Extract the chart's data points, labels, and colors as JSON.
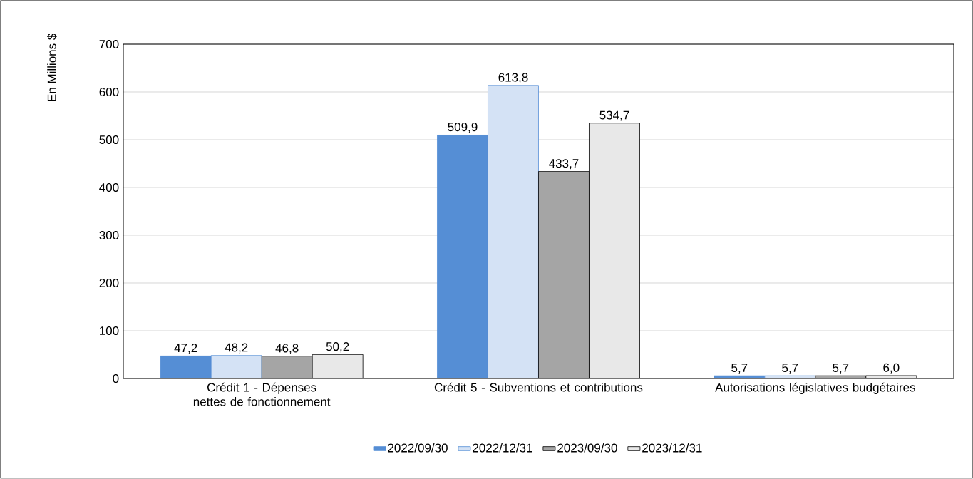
{
  "chart_data": {
    "type": "bar",
    "ylabel": "En Millions $",
    "categories": [
      "Crédit 1 - Dépenses nettes de fonctionnement",
      "Crédit 5 - Subventions et contributions",
      "Autorisations législatives budgétaires"
    ],
    "series": [
      {
        "name": "2022/09/30",
        "color": "#558ed5",
        "values": [
          47.2,
          509.9,
          5.7
        ],
        "value_labels": [
          "47,2",
          "509,9",
          "5,7"
        ]
      },
      {
        "name": "2022/12/31",
        "color": "#d4e2f5",
        "values": [
          48.2,
          613.8,
          5.7
        ],
        "value_labels": [
          "48,2",
          "613,8",
          "5,7"
        ]
      },
      {
        "name": "2023/09/30",
        "color": "#a5a5a5",
        "values": [
          46.8,
          433.7,
          5.7
        ],
        "value_labels": [
          "46,8",
          "433,7",
          "5,7"
        ]
      },
      {
        "name": "2023/12/31",
        "color": "#e8e8e8",
        "values": [
          50.2,
          534.7,
          6.0
        ],
        "value_labels": [
          "50,2",
          "534,7",
          "6,0"
        ]
      }
    ],
    "ylim": [
      0,
      700
    ],
    "yticks": [
      0,
      100,
      200,
      300,
      400,
      500,
      600,
      700
    ],
    "grid": "y",
    "legend": "bottom"
  }
}
